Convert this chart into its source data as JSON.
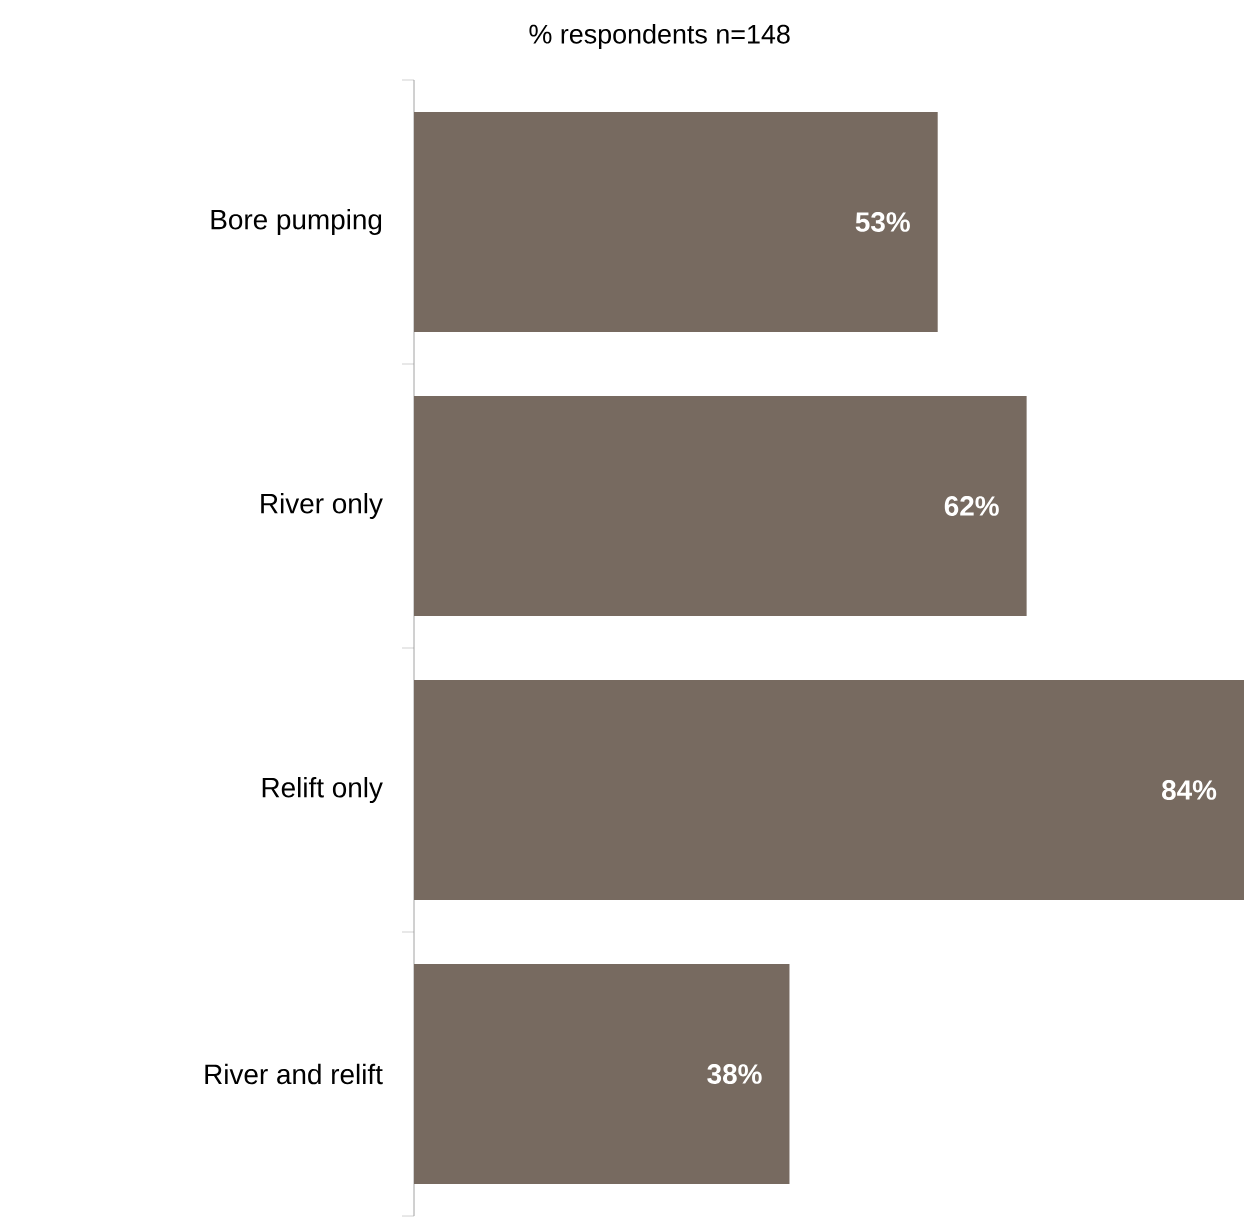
{
  "chart_data": {
    "type": "bar",
    "orientation": "horizontal",
    "title": "% respondents n=148",
    "categories": [
      "Bore pumping",
      "River only",
      "Relift only",
      "River and relift"
    ],
    "values": [
      53,
      62,
      84,
      38
    ],
    "value_labels": [
      "53%",
      "62%",
      "84%",
      "38%"
    ],
    "color": "#776a60"
  }
}
